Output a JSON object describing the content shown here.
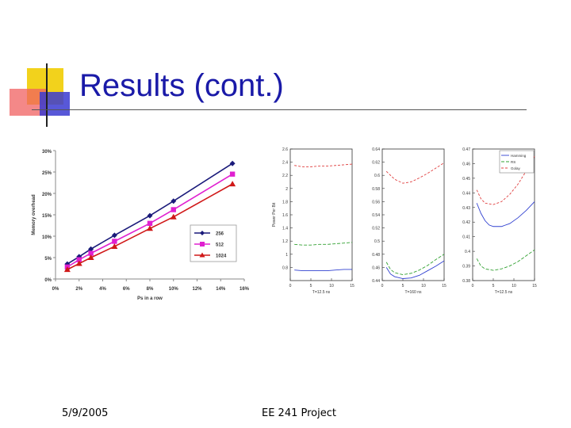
{
  "slide": {
    "title": "Results (cont.)",
    "footer_date": "5/9/2005",
    "footer_center": "EE 241 Project"
  },
  "colors": {
    "title": "#1a1aa8",
    "logo_yellow": "#f2d21c",
    "logo_blue": "#3b3bd1",
    "logo_red": "#f06060"
  },
  "chart_data": [
    {
      "type": "line",
      "title": "",
      "xlabel": "Ps in a row",
      "ylabel": "Memory overhead",
      "xlim": [
        0,
        16
      ],
      "ylim": [
        0,
        30
      ],
      "xticks": [
        0,
        2,
        4,
        6,
        8,
        10,
        12,
        14,
        16
      ],
      "yticks": [
        0,
        5,
        10,
        15,
        20,
        25,
        30
      ],
      "xtick_labels": [
        "0%",
        "2%",
        "4%",
        "6%",
        "8%",
        "10%",
        "12%",
        "14%",
        "16%"
      ],
      "ytick_labels": [
        "0%",
        "5%",
        "10%",
        "15%",
        "20%",
        "25%",
        "30%"
      ],
      "legend_position": "lower-right",
      "series": [
        {
          "name": "256",
          "color": "#1a1a7a",
          "marker": "diamond",
          "x": [
            1,
            2,
            3,
            5,
            8,
            10,
            15
          ],
          "y": [
            3.5,
            5.2,
            7.0,
            10.2,
            14.8,
            18.2,
            27.0
          ]
        },
        {
          "name": "512",
          "color": "#e020d0",
          "marker": "square",
          "x": [
            1,
            2,
            3,
            5,
            8,
            10,
            15
          ],
          "y": [
            2.8,
            4.5,
            6.0,
            8.8,
            13.0,
            16.2,
            24.5
          ]
        },
        {
          "name": "1024",
          "color": "#d01818",
          "marker": "triangle",
          "x": [
            1,
            2,
            3,
            5,
            8,
            10,
            15
          ],
          "y": [
            2.2,
            3.6,
            5.0,
            7.6,
            11.8,
            14.5,
            22.2
          ]
        }
      ]
    },
    {
      "type": "line",
      "xlabel": "T=12.5 ns",
      "ylabel": "Power Per Bit",
      "xlim": [
        0,
        15
      ],
      "ylim": [
        0.6,
        2.6
      ],
      "xticks": [
        0,
        5,
        10,
        15
      ],
      "yticks": [
        0.8,
        1.0,
        1.2,
        1.4,
        1.6,
        1.8,
        2.0,
        2.2,
        2.4,
        2.6
      ],
      "ytick_labels": [
        "0.8",
        "1",
        "1.2",
        "1.4",
        "1.6",
        "1.8",
        "2",
        "2.2",
        "2.4",
        "2.6"
      ],
      "series": [
        {
          "color": "#e04040",
          "dash": "3,2",
          "x": [
            1,
            3,
            5,
            7,
            9,
            11,
            13,
            15
          ],
          "y": [
            2.35,
            2.33,
            2.33,
            2.34,
            2.34,
            2.35,
            2.36,
            2.37
          ]
        },
        {
          "color": "#30a030",
          "dash": "4,2",
          "x": [
            1,
            3,
            5,
            7,
            9,
            11,
            13,
            15
          ],
          "y": [
            1.15,
            1.14,
            1.14,
            1.15,
            1.15,
            1.16,
            1.17,
            1.18
          ]
        },
        {
          "color": "#3040d0",
          "dash": "",
          "x": [
            1,
            3,
            5,
            7,
            9,
            11,
            13,
            15
          ],
          "y": [
            0.76,
            0.75,
            0.75,
            0.75,
            0.75,
            0.76,
            0.77,
            0.77
          ]
        }
      ]
    },
    {
      "type": "line",
      "xlabel": "T=160 ns",
      "xlim": [
        0,
        15
      ],
      "ylim": [
        0.44,
        0.64
      ],
      "xticks": [
        0,
        5,
        10,
        15
      ],
      "yticks": [
        0.44,
        0.46,
        0.48,
        0.5,
        0.52,
        0.54,
        0.56,
        0.58,
        0.6,
        0.62,
        0.64
      ],
      "ytick_labels": [
        "0.44",
        "0.46",
        "0.48",
        "0.5",
        "0.52",
        "0.54",
        "0.56",
        "0.58",
        "0.6",
        "0.62",
        "0.64"
      ],
      "series": [
        {
          "color": "#e04040",
          "dash": "3,2",
          "x": [
            1,
            3,
            5,
            7,
            9,
            11,
            13,
            15
          ],
          "y": [
            0.606,
            0.594,
            0.588,
            0.59,
            0.596,
            0.603,
            0.611,
            0.619
          ]
        },
        {
          "color": "#30a030",
          "dash": "4,2",
          "x": [
            1,
            2,
            3,
            5,
            7,
            9,
            11,
            13,
            15
          ],
          "y": [
            0.468,
            0.457,
            0.452,
            0.449,
            0.451,
            0.456,
            0.463,
            0.472,
            0.48
          ]
        },
        {
          "color": "#3040d0",
          "dash": "",
          "x": [
            1,
            2,
            3,
            5,
            7,
            9,
            11,
            13,
            15
          ],
          "y": [
            0.46,
            0.45,
            0.446,
            0.443,
            0.444,
            0.448,
            0.455,
            0.462,
            0.47
          ]
        }
      ]
    },
    {
      "type": "line",
      "xlabel": "T=12.5 ns",
      "xlim": [
        0,
        15
      ],
      "ylim": [
        0.38,
        0.47
      ],
      "xticks": [
        0,
        5,
        10,
        15
      ],
      "yticks": [
        0.38,
        0.39,
        0.4,
        0.41,
        0.42,
        0.43,
        0.44,
        0.45,
        0.46,
        0.47
      ],
      "ytick_labels": [
        "0.38",
        "0.39",
        "0.4",
        "0.41",
        "0.42",
        "0.43",
        "0.44",
        "0.45",
        "0.46",
        "0.47"
      ],
      "legend_position": "top-right",
      "series": [
        {
          "name": "Hamming",
          "color": "#3040d0",
          "dash": "",
          "x": [
            1,
            2,
            3,
            4,
            5,
            7,
            9,
            11,
            13,
            15
          ],
          "y": [
            0.433,
            0.426,
            0.421,
            0.418,
            0.417,
            0.417,
            0.419,
            0.423,
            0.428,
            0.434
          ]
        },
        {
          "name": "RS",
          "color": "#30a030",
          "dash": "4,2",
          "x": [
            1,
            2,
            3,
            5,
            7,
            9,
            11,
            13,
            15
          ],
          "y": [
            0.395,
            0.39,
            0.388,
            0.387,
            0.388,
            0.39,
            0.393,
            0.397,
            0.401
          ]
        },
        {
          "name": "Golay",
          "color": "#e04040",
          "dash": "3,2",
          "x": [
            1,
            2,
            3,
            5,
            7,
            9,
            11,
            13,
            15
          ],
          "y": [
            0.442,
            0.436,
            0.433,
            0.432,
            0.434,
            0.439,
            0.446,
            0.455,
            0.465
          ]
        }
      ]
    }
  ]
}
